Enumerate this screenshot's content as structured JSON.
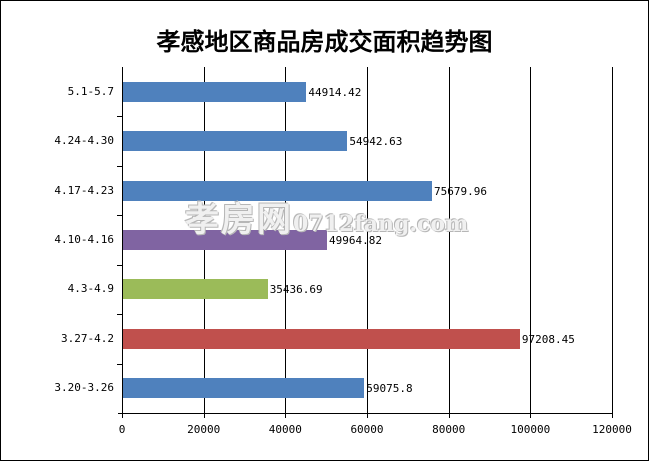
{
  "chart_data": {
    "type": "bar",
    "orientation": "horizontal",
    "title": "孝感地区商品房成交面积趋势图",
    "xlabel": "",
    "ylabel": "",
    "xlim": [
      0,
      120000
    ],
    "x_ticks": [
      "0",
      "20000",
      "40000",
      "60000",
      "80000",
      "100000",
      "120000"
    ],
    "grid": "vertical",
    "legend": null,
    "categories": [
      "5.1-5.7",
      "4.24-4.30",
      "4.17-4.23",
      "4.10-4.16",
      "4.3-4.9",
      "3.27-4.2",
      "3.20-3.26"
    ],
    "values": [
      44914.42,
      54942.63,
      75679.96,
      49964.82,
      35436.69,
      97208.45,
      59075.8
    ],
    "value_labels": [
      "44914.42",
      "54942.63",
      "75679.96",
      "49964.82",
      "35436.69",
      "97208.45",
      "59075.8"
    ],
    "bar_colors": [
      "#4f81bd",
      "#4f81bd",
      "#4f81bd",
      "#8064a2",
      "#9bbb59",
      "#c0504d",
      "#4f81bd"
    ]
  },
  "watermark": {
    "cn": "孝房网",
    "en": "0712fang.com"
  }
}
